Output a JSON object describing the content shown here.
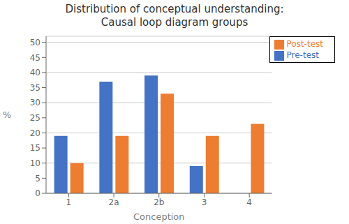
{
  "chart_data": {
    "type": "bar",
    "title": "Distribution of conceptual understanding:",
    "subtitle": "Causal loop diagram groups",
    "categories": [
      "1",
      "2a",
      "2b",
      "3",
      "4"
    ],
    "series": [
      {
        "name": "Pre-test",
        "color": "#4472C4",
        "values": [
          19,
          37,
          39,
          9,
          0
        ]
      },
      {
        "name": "Post-test",
        "color": "#ED7D31",
        "values": [
          10,
          19,
          33,
          19,
          23
        ]
      }
    ],
    "xlabel": "Conception",
    "ylabel": "%",
    "ylim": [
      0,
      52
    ],
    "yticks": [
      0,
      5,
      10,
      15,
      20,
      25,
      30,
      35,
      40,
      45,
      50
    ],
    "grid": true,
    "legend": "upper right"
  }
}
